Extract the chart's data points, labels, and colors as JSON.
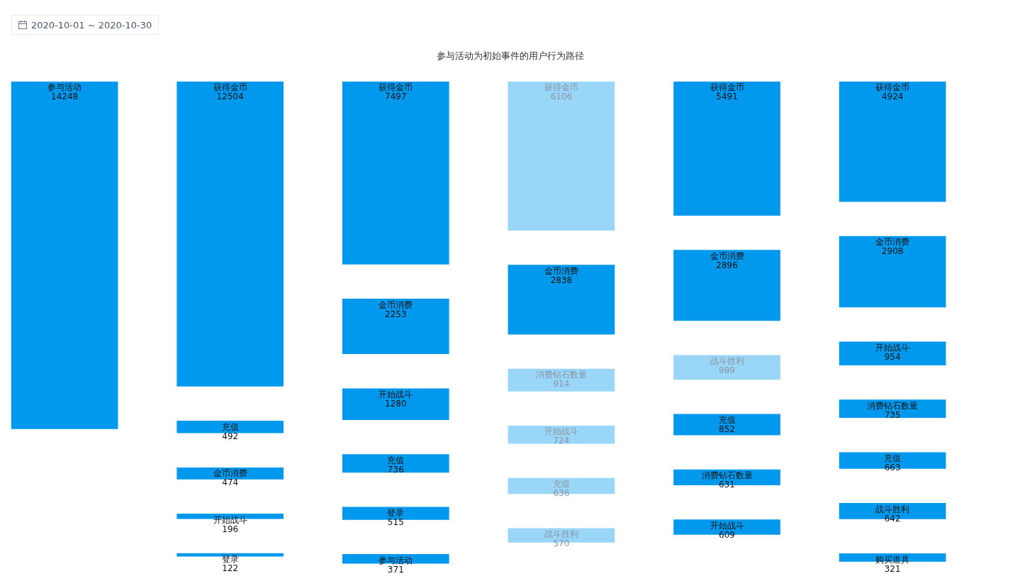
{
  "chart_data": {
    "type": "other",
    "title": "参与活动为初始事件的用户行为路径",
    "annotations": [
      "2020-10-01 ~ 2020-10-30"
    ],
    "data_labels": true,
    "categories": [
      "参与活动",
      "获得金币",
      "充值",
      "金币消费",
      "开始战斗",
      "登录",
      "获得金币",
      "金币消费",
      "开始战斗",
      "充值",
      "登录",
      "参与活动",
      "获得金币",
      "金币消费",
      "消费钻石数量",
      "开始战斗",
      "充值",
      "战斗胜利",
      "获得金币",
      "金币消费",
      "战斗胜利",
      "充值",
      "消费钻石数量",
      "开始战斗",
      "获得金币",
      "金币消费",
      "开始战斗",
      "消费钻石数量",
      "充值",
      "战斗胜利",
      "购买道具"
    ],
    "series": [
      {
        "color": "#0099ee",
        "values": [
          14248,
          null,
          null,
          null,
          null,
          null,
          null,
          null,
          null,
          null,
          null,
          null,
          null,
          null,
          null,
          null,
          null,
          null,
          null,
          null,
          null,
          null,
          null,
          null,
          null,
          null,
          null,
          null,
          null,
          null,
          null
        ]
      },
      {
        "color": "#0099ee",
        "values": [
          null,
          12504,
          492,
          474,
          196,
          122,
          null,
          null,
          null,
          null,
          null,
          null,
          null,
          null,
          null,
          null,
          null,
          null,
          null,
          null,
          null,
          null,
          null,
          null,
          null,
          null,
          null,
          null,
          null,
          null,
          null
        ]
      },
      {
        "color": "#0099ee",
        "values": [
          null,
          null,
          null,
          null,
          null,
          null,
          7497,
          2253,
          1280,
          736,
          515,
          371,
          null,
          null,
          null,
          null,
          null,
          null,
          null,
          null,
          null,
          null,
          null,
          null,
          null,
          null,
          null,
          null,
          null,
          null,
          null
        ]
      },
      {
        "colors": [
          null,
          null,
          null,
          null,
          null,
          null,
          null,
          null,
          null,
          null,
          null,
          null,
          "#99d6f7",
          "#0099ee",
          "#99d6f7",
          "#99d6f7",
          "#99d6f7",
          "#99d6f7",
          null,
          null,
          null,
          null,
          null,
          null,
          null,
          null,
          null,
          null,
          null,
          null,
          null
        ],
        "values": [
          null,
          null,
          null,
          null,
          null,
          null,
          null,
          null,
          null,
          null,
          null,
          null,
          6106,
          2838,
          914,
          724,
          636,
          570,
          null,
          null,
          null,
          null,
          null,
          null,
          null,
          null,
          null,
          null,
          null,
          null,
          null
        ]
      },
      {
        "colors": [
          null,
          null,
          null,
          null,
          null,
          null,
          null,
          null,
          null,
          null,
          null,
          null,
          null,
          null,
          null,
          null,
          null,
          null,
          "#0099ee",
          "#0099ee",
          "#99d6f7",
          "#0099ee",
          "#0099ee",
          "#0099ee",
          null,
          null,
          null,
          null,
          null,
          null,
          null
        ],
        "values": [
          null,
          null,
          null,
          null,
          null,
          null,
          null,
          null,
          null,
          null,
          null,
          null,
          null,
          null,
          null,
          null,
          null,
          null,
          5491,
          2896,
          989,
          852,
          631,
          609,
          null,
          null,
          null,
          null,
          null,
          null,
          null
        ]
      },
      {
        "color": "#0099ee",
        "values": [
          null,
          null,
          null,
          null,
          null,
          null,
          null,
          null,
          null,
          null,
          null,
          null,
          null,
          null,
          null,
          null,
          null,
          null,
          null,
          null,
          null,
          null,
          null,
          null,
          4924,
          2908,
          954,
          735,
          663,
          642,
          321
        ]
      }
    ]
  }
}
